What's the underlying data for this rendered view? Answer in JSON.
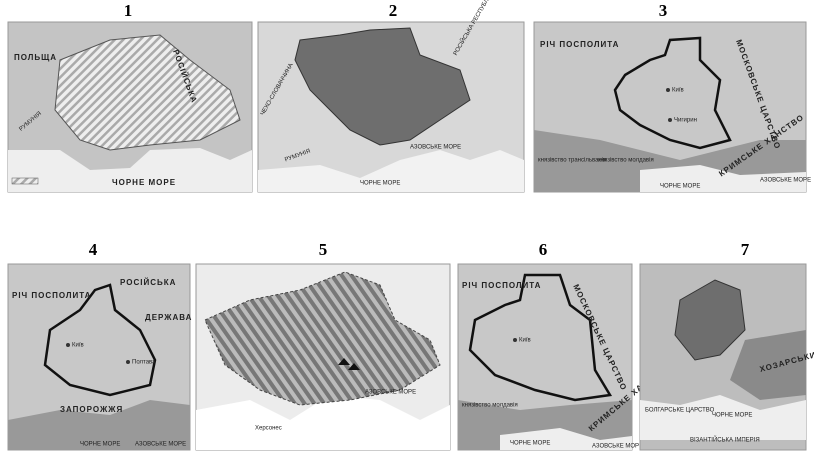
{
  "maps": [
    {
      "number": "1",
      "labels": [
        "ПОЛЬЩА",
        "РОСІЙСЬКА",
        "РУМУНІЯ",
        "ЧОРНЕ МОРЕ"
      ]
    },
    {
      "number": "2",
      "labels": [
        "РОСІЙСЬКА РЕСПУБЛІКА",
        "ЧЕХО-СЛОВАЧЧИНА",
        "РУМУНІЯ",
        "АЗОВСЬКЕ МОРЕ",
        "ЧОРНЕ МОРЕ"
      ]
    },
    {
      "number": "3",
      "labels": [
        "РІЧ ПОСПОЛИТА",
        "МОСКОВСЬКЕ ЦАРСТВО",
        "Київ",
        "Чигирин",
        "князівство трансільванія",
        "князівство молдавія",
        "КРИМСЬКЕ ХАНСТВО",
        "ЧОРНЕ МОРЕ",
        "АЗОВСЬКЕ МОРЕ"
      ]
    },
    {
      "number": "4",
      "labels": [
        "РІЧ ПОСПОЛИТА",
        "РОСІЙСЬКА",
        "ДЕРЖАВА",
        "Київ",
        "Полтава",
        "ЗАПОРОЖЖЯ",
        "ЧОРНЕ МОРЕ",
        "АЗОВСЬКЕ МОРЕ"
      ]
    },
    {
      "number": "5",
      "labels": [
        "АЗОВСЬКЕ МОРЕ",
        "Херсонес"
      ]
    },
    {
      "number": "6",
      "labels": [
        "РІЧ ПОСПОЛИТА",
        "МОСКОВСЬКЕ ЦАРСТВО",
        "Київ",
        "князівство молдавія",
        "КРИМСЬКЕ ХАНСТВО",
        "ЧОРНЕ МОРЕ",
        "АЗОВСЬКЕ МОРЕ"
      ]
    },
    {
      "number": "7",
      "labels": [
        "ХОЗАРСЬКИЙ КАГАНАТ",
        "БОЛГАРСЬКЕ ЦАРСТВО",
        "ЧОРНЕ МОРЕ",
        "ВІЗАНТІЙСЬКА ІМПЕРІЯ"
      ]
    }
  ]
}
